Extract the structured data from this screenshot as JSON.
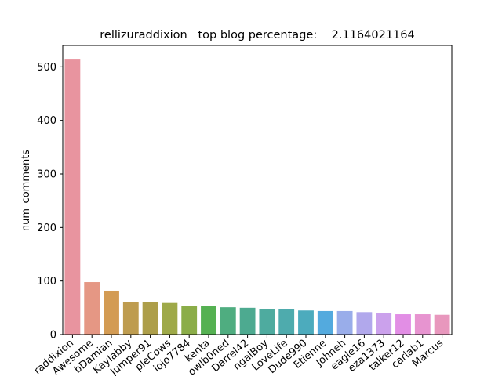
{
  "chart_data": {
    "type": "bar",
    "title": "rellizuraddixion   top blog percentage:    2.1164021164",
    "xlabel": "",
    "ylabel": "num_comments",
    "ylim": [
      0,
      540
    ],
    "yticks": [
      0,
      100,
      200,
      300,
      400,
      500
    ],
    "grid": false,
    "legend": "none",
    "categories": [
      "raddixion",
      "Awesome",
      "bDamian",
      "Kaylabby",
      "Jumper91",
      "pleCows",
      "iojo7784",
      "kenta",
      "owlb0ned",
      "Darrel42",
      "ngalBoy",
      "LoveLife",
      "Dude990",
      "Etienne",
      "Johneh",
      "eagle16",
      "eza1373",
      "talker12",
      "carlab1",
      "Marcus"
    ],
    "values": [
      515,
      98,
      82,
      61,
      61,
      59,
      54,
      53,
      51,
      50,
      48,
      47,
      45,
      44,
      44,
      42,
      40,
      38,
      38,
      37
    ],
    "colors": [
      "#e8949f",
      "#e59784",
      "#d39b53",
      "#be9c4f",
      "#ad9e49",
      "#9ea948",
      "#8bad48",
      "#55b152",
      "#4fad80",
      "#4daa90",
      "#4eab9f",
      "#4eabad",
      "#4cabbd",
      "#53aade",
      "#99adea",
      "#b1a8ec",
      "#cba1ec",
      "#e28ee5",
      "#e794d0",
      "#e897bd"
    ]
  }
}
